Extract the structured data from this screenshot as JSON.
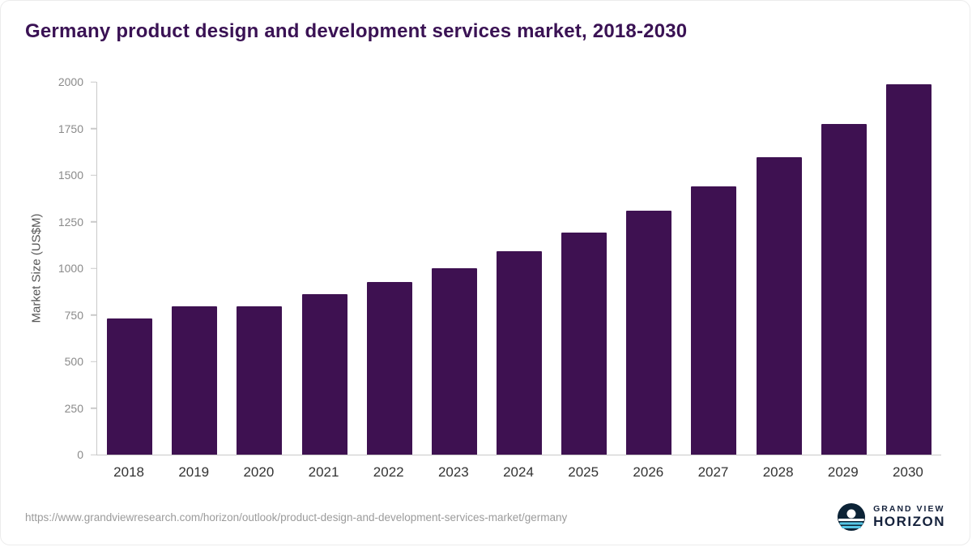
{
  "title": "Germany product design and development services market, 2018-2030",
  "chart_data": {
    "type": "bar",
    "title": "Germany product design and development services market, 2018-2030",
    "categories": [
      "2018",
      "2019",
      "2020",
      "2021",
      "2022",
      "2023",
      "2024",
      "2025",
      "2026",
      "2027",
      "2028",
      "2029",
      "2030"
    ],
    "values": [
      730,
      795,
      795,
      860,
      925,
      1000,
      1090,
      1190,
      1310,
      1440,
      1595,
      1775,
      1985
    ],
    "xlabel": "",
    "ylabel": "Market Size (US$M)",
    "ylim": [
      0,
      2000
    ],
    "yticks": [
      0,
      250,
      500,
      750,
      1000,
      1250,
      1500,
      1750,
      2000
    ],
    "bar_color": "#3e1151",
    "grid": false,
    "legend_position": "none"
  },
  "footer": {
    "source_url": "https://www.grandviewresearch.com/horizon/outlook/product-design-and-development-services-market/germany",
    "logo": {
      "line1": "GRAND VIEW",
      "line2": "HORIZON",
      "icon": "horizon-sun-over-water-icon",
      "navy": "#0c2336",
      "light_blue": "#56c7e6"
    }
  }
}
